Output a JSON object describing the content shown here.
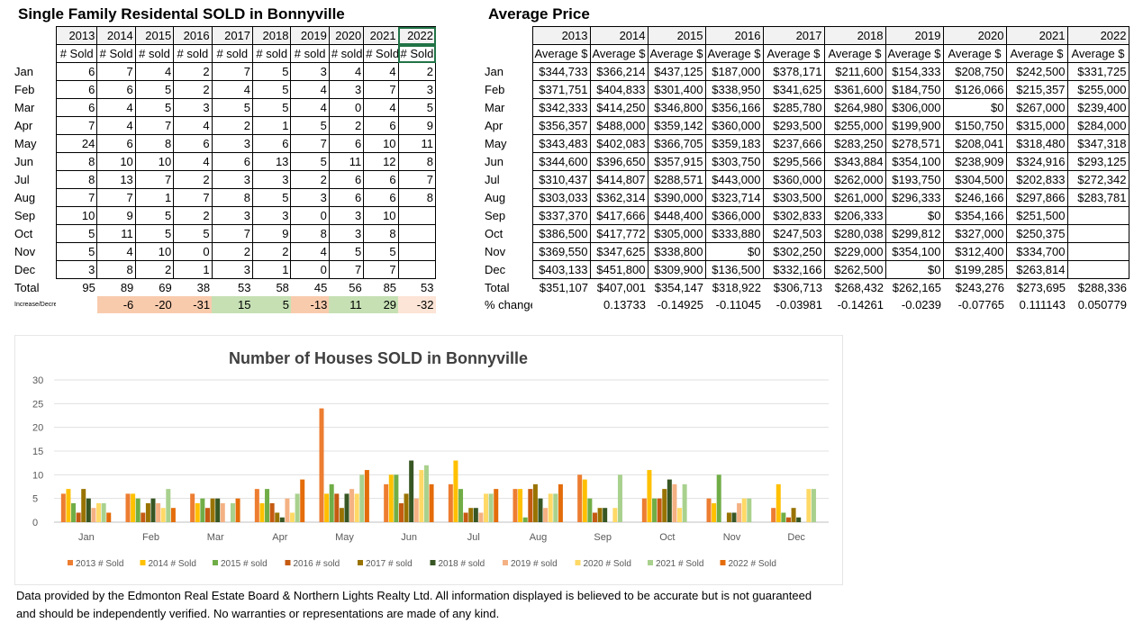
{
  "sold": {
    "title": "Single Family Residental SOLD in  Bonnyville",
    "years": [
      "2013",
      "2014",
      "2015",
      "2016",
      "2017",
      "2018",
      "2019",
      "2020",
      "2021",
      "2022"
    ],
    "subheaders": [
      "# Sold",
      "# Sold",
      "# sold",
      "# sold",
      "# sold",
      "# sold",
      "# sold",
      "# sold",
      "# Sold",
      "# Sold"
    ],
    "rows": [
      {
        "month": "Jan",
        "values": [
          "6",
          "7",
          "4",
          "2",
          "7",
          "5",
          "3",
          "4",
          "4",
          "2"
        ]
      },
      {
        "month": "Feb",
        "values": [
          "6",
          "6",
          "5",
          "2",
          "4",
          "5",
          "4",
          "3",
          "7",
          "3"
        ]
      },
      {
        "month": "Mar",
        "values": [
          "6",
          "4",
          "5",
          "3",
          "5",
          "5",
          "4",
          "0",
          "4",
          "5"
        ]
      },
      {
        "month": "Apr",
        "values": [
          "7",
          "4",
          "7",
          "4",
          "2",
          "1",
          "5",
          "2",
          "6",
          "9"
        ]
      },
      {
        "month": "May",
        "values": [
          "24",
          "6",
          "8",
          "6",
          "3",
          "6",
          "7",
          "6",
          "10",
          "11"
        ]
      },
      {
        "month": "Jun",
        "values": [
          "8",
          "10",
          "10",
          "4",
          "6",
          "13",
          "5",
          "11",
          "12",
          "8"
        ]
      },
      {
        "month": "Jul",
        "values": [
          "8",
          "13",
          "7",
          "2",
          "3",
          "3",
          "2",
          "6",
          "6",
          "7"
        ]
      },
      {
        "month": "Aug",
        "values": [
          "7",
          "7",
          "1",
          "7",
          "8",
          "5",
          "3",
          "6",
          "6",
          "8"
        ]
      },
      {
        "month": "Sep",
        "values": [
          "10",
          "9",
          "5",
          "2",
          "3",
          "3",
          "0",
          "3",
          "10",
          ""
        ]
      },
      {
        "month": "Oct",
        "values": [
          "5",
          "11",
          "5",
          "5",
          "7",
          "9",
          "8",
          "3",
          "8",
          ""
        ]
      },
      {
        "month": "Nov",
        "values": [
          "5",
          "4",
          "10",
          "0",
          "2",
          "2",
          "4",
          "5",
          "5",
          ""
        ]
      },
      {
        "month": "Dec",
        "values": [
          "3",
          "8",
          "2",
          "1",
          "3",
          "1",
          "0",
          "7",
          "7",
          ""
        ]
      }
    ],
    "total_label": "Total",
    "totals": [
      "95",
      "89",
      "69",
      "38",
      "53",
      "58",
      "45",
      "56",
      "85",
      "53"
    ],
    "increase_label": "Increase/Decrease",
    "increase": [
      "",
      "-6",
      "-20",
      "-31",
      "15",
      "5",
      "-13",
      "11",
      "29",
      "-32"
    ],
    "increase_colors": [
      "",
      "#f8cbad",
      "#f8cbad",
      "#f8cbad",
      "#c6e0b4",
      "#c6e0b4",
      "#f8cbad",
      "#c6e0b4",
      "#c6e0b4",
      "#fce4d6"
    ]
  },
  "avg": {
    "title": "Average Price",
    "years": [
      "2013",
      "2014",
      "2015",
      "2016",
      "2017",
      "2018",
      "2019",
      "2020",
      "2021",
      "2022"
    ],
    "subheaders": [
      "Average $",
      "Average $",
      "Average $",
      "Average $",
      "Average $",
      "Average $",
      "Average $",
      "Average $",
      "Average $",
      "Average $"
    ],
    "rows": [
      {
        "month": "Jan",
        "values": [
          "$344,733",
          "$366,214",
          "$437,125",
          "$187,000",
          "$378,171",
          "$211,600",
          "$154,333",
          "$208,750",
          "$242,500",
          "$331,725"
        ]
      },
      {
        "month": "Feb",
        "values": [
          "$371,751",
          "$404,833",
          "$301,400",
          "$338,950",
          "$341,625",
          "$361,600",
          "$184,750",
          "$126,066",
          "$215,357",
          "$255,000"
        ]
      },
      {
        "month": "Mar",
        "values": [
          "$342,333",
          "$414,250",
          "$346,800",
          "$356,166",
          "$285,780",
          "$264,980",
          "$306,000",
          "$0",
          "$267,000",
          "$239,400"
        ]
      },
      {
        "month": "Apr",
        "values": [
          "$356,357",
          "$488,000",
          "$359,142",
          "$360,000",
          "$293,500",
          "$255,000",
          "$199,900",
          "$150,750",
          "$315,000",
          "$284,000"
        ]
      },
      {
        "month": "May",
        "values": [
          "$343,483",
          "$402,083",
          "$366,705",
          "$359,183",
          "$237,666",
          "$283,250",
          "$278,571",
          "$208,041",
          "$318,480",
          "$347,318"
        ]
      },
      {
        "month": "Jun",
        "values": [
          "$344,600",
          "$396,650",
          "$357,915",
          "$303,750",
          "$295,566",
          "$343,884",
          "$354,100",
          "$238,909",
          "$324,916",
          "$293,125"
        ]
      },
      {
        "month": "Jul",
        "values": [
          "$310,437",
          "$414,807",
          "$288,571",
          "$443,000",
          "$360,000",
          "$262,000",
          "$193,750",
          "$304,500",
          "$202,833",
          "$272,342"
        ]
      },
      {
        "month": "Aug",
        "values": [
          "$303,033",
          "$362,314",
          "$390,000",
          "$323,714",
          "$303,500",
          "$261,000",
          "$296,333",
          "$246,166",
          "$297,866",
          "$283,781"
        ]
      },
      {
        "month": "Sep",
        "values": [
          "$337,370",
          "$417,666",
          "$448,400",
          "$366,000",
          "$302,833",
          "$206,333",
          "$0",
          "$354,166",
          "$251,500",
          ""
        ]
      },
      {
        "month": "Oct",
        "values": [
          "$386,500",
          "$417,772",
          "$305,000",
          "$333,880",
          "$247,503",
          "$280,038",
          "$299,812",
          "$327,000",
          "$250,375",
          ""
        ]
      },
      {
        "month": "Nov",
        "values": [
          "$369,550",
          "$347,625",
          "$338,800",
          "$0",
          "$302,250",
          "$229,000",
          "$354,100",
          "$312,400",
          "$334,700",
          ""
        ]
      },
      {
        "month": "Dec",
        "values": [
          "$403,133",
          "$451,800",
          "$309,900",
          "$136,500",
          "$332,166",
          "$262,500",
          "$0",
          "$199,285",
          "$263,814",
          ""
        ]
      }
    ],
    "total_label": "Total",
    "totals": [
      "$351,107",
      "$407,001",
      "$354,147",
      "$318,922",
      "$306,713",
      "$268,432",
      "$262,165",
      "$243,276",
      "$273,695",
      "$288,336"
    ],
    "change_label": "% change",
    "change": [
      "",
      "0.13733",
      "-0.14925",
      "-0.11045",
      "-0.03981",
      "-0.14261",
      "-0.0239",
      "-0.07765",
      "0.111143",
      "0.050779"
    ]
  },
  "chart_data": {
    "type": "bar",
    "title": "Number of Houses SOLD in Bonnyville",
    "categories": [
      "Jan",
      "Feb",
      "Mar",
      "Apr",
      "May",
      "Jun",
      "Jul",
      "Aug",
      "Sep",
      "Oct",
      "Nov",
      "Dec"
    ],
    "ylim": [
      0,
      30
    ],
    "yticks": [
      "0",
      "5",
      "10",
      "15",
      "20",
      "25",
      "30"
    ],
    "series": [
      {
        "name": "2013 # Sold",
        "color": "#ed7d31",
        "values": [
          6,
          6,
          6,
          7,
          24,
          8,
          8,
          7,
          10,
          5,
          5,
          3
        ]
      },
      {
        "name": "2014 # Sold",
        "color": "#ffc000",
        "values": [
          7,
          6,
          4,
          4,
          6,
          10,
          13,
          7,
          9,
          11,
          4,
          8
        ]
      },
      {
        "name": "2015 # sold",
        "color": "#70ad47",
        "values": [
          4,
          5,
          5,
          7,
          8,
          10,
          7,
          1,
          5,
          5,
          10,
          2
        ]
      },
      {
        "name": "2016 # sold",
        "color": "#c55a11",
        "values": [
          2,
          2,
          3,
          4,
          6,
          4,
          2,
          7,
          2,
          5,
          0,
          1
        ]
      },
      {
        "name": "2017 # sold",
        "color": "#997300",
        "values": [
          7,
          4,
          5,
          2,
          3,
          6,
          3,
          8,
          3,
          7,
          2,
          3
        ]
      },
      {
        "name": "2018 # sold",
        "color": "#375623",
        "values": [
          5,
          5,
          5,
          1,
          6,
          13,
          3,
          5,
          3,
          9,
          2,
          1
        ]
      },
      {
        "name": "2019 # sold",
        "color": "#f4b183",
        "values": [
          3,
          4,
          4,
          5,
          7,
          5,
          2,
          3,
          0,
          8,
          4,
          0
        ]
      },
      {
        "name": "2020 # Sold",
        "color": "#ffd966",
        "values": [
          4,
          3,
          0,
          2,
          6,
          11,
          6,
          6,
          3,
          3,
          5,
          7
        ]
      },
      {
        "name": "2021 # Sold",
        "color": "#a9d18e",
        "values": [
          4,
          7,
          4,
          6,
          10,
          12,
          6,
          6,
          10,
          8,
          5,
          7
        ]
      },
      {
        "name": "2022 # Sold",
        "color": "#e46c0a",
        "values": [
          2,
          3,
          5,
          9,
          11,
          8,
          7,
          8,
          null,
          null,
          null,
          null
        ]
      }
    ]
  },
  "footer": {
    "line1": "Data provided by the Edmonton Real Estate Board & Northern Lights Realty Ltd. All information displayed is believed to be accurate but is not guaranteed",
    "line2": "and should be independently verified. No warranties or representations are made of any kind."
  }
}
